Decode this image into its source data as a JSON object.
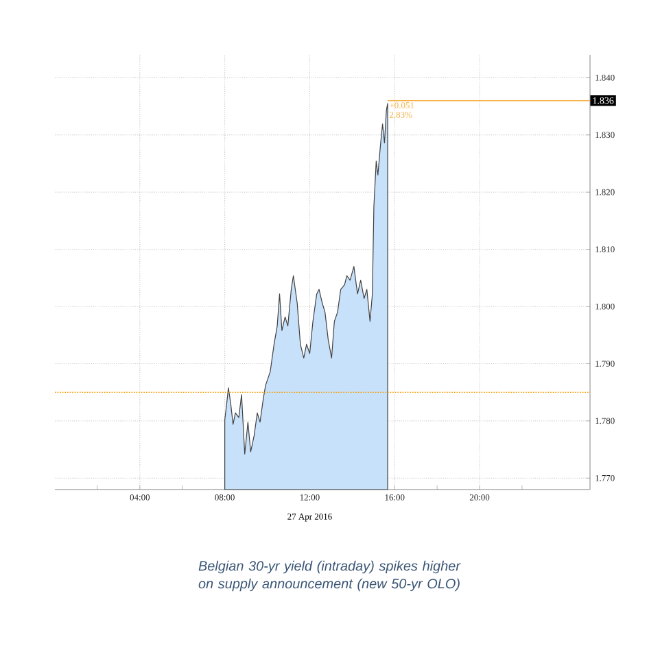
{
  "chart_data": {
    "type": "area",
    "xlabel": "27 Apr 2016",
    "x": [
      8.0,
      8.09,
      8.17,
      8.28,
      8.39,
      8.5,
      8.66,
      8.79,
      8.94,
      9.09,
      9.22,
      9.38,
      9.53,
      9.66,
      9.81,
      9.92,
      10.14,
      10.32,
      10.47,
      10.58,
      10.69,
      10.84,
      10.97,
      11.13,
      11.23,
      11.41,
      11.56,
      11.72,
      11.85,
      12.0,
      12.15,
      12.33,
      12.44,
      12.59,
      12.72,
      12.87,
      13.03,
      13.16,
      13.31,
      13.46,
      13.64,
      13.75,
      13.9,
      14.08,
      14.25,
      14.4,
      14.56,
      14.69,
      14.84,
      14.95,
      15.02,
      15.13,
      15.21,
      15.34,
      15.43,
      15.52,
      15.61,
      15.67
    ],
    "series": [
      {
        "color": "#c8e1fb",
        "values": [
          1.7802,
          1.783,
          1.7858,
          1.783,
          1.7794,
          1.7814,
          1.7806,
          1.7846,
          1.7742,
          1.7798,
          1.7746,
          1.7774,
          1.7814,
          1.7798,
          1.7838,
          1.7862,
          1.7886,
          1.7934,
          1.7966,
          1.8022,
          1.7958,
          1.7982,
          1.7966,
          1.803,
          1.8054,
          1.8006,
          1.7934,
          1.791,
          1.7934,
          1.7918,
          1.7974,
          1.8022,
          1.803,
          1.8006,
          1.799,
          1.7942,
          1.791,
          1.7974,
          1.799,
          1.803,
          1.8038,
          1.8054,
          1.8046,
          1.807,
          1.8022,
          1.8046,
          1.8014,
          1.803,
          1.7974,
          1.8022,
          1.8174,
          1.8254,
          1.823,
          1.8286,
          1.8319,
          1.8286,
          1.8343,
          1.8355
        ]
      }
    ],
    "xlim": [
      0,
      25.2
    ],
    "ylim": [
      1.768,
      1.844
    ],
    "xticks": [
      {
        "value": 2,
        "label": null
      },
      {
        "value": 4,
        "label": "04:00"
      },
      {
        "value": 6,
        "label": null
      },
      {
        "value": 8,
        "label": "08:00"
      },
      {
        "value": 10,
        "label": null
      },
      {
        "value": 12,
        "label": "12:00"
      },
      {
        "value": 14,
        "label": null
      },
      {
        "value": 16,
        "label": "16:00"
      },
      {
        "value": 18,
        "label": null
      },
      {
        "value": 20,
        "label": "20:00"
      },
      {
        "value": 22,
        "label": null
      }
    ],
    "yticks": [
      {
        "value": 1.77,
        "label": "1.770"
      },
      {
        "value": 1.78,
        "label": "1.780"
      },
      {
        "value": 1.79,
        "label": "1.790"
      },
      {
        "value": 1.8,
        "label": "1.800"
      },
      {
        "value": 1.81,
        "label": "1.810"
      },
      {
        "value": 1.82,
        "label": "1.820"
      },
      {
        "value": 1.83,
        "label": "1.830"
      },
      {
        "value": 1.84,
        "label": "1.840"
      }
    ],
    "ref_lines": [
      {
        "axis": "y",
        "value": 1.785,
        "color": "#f5a000",
        "line_style": "dotted"
      },
      {
        "axis": "y",
        "value": 1.836,
        "label": "1.836",
        "color": "#f5b040",
        "line_style": "solid"
      }
    ],
    "annotations": [
      "+0.051",
      "2.83%",
      "Belgian 30-yr yield (intraday) spikes higher on supply announcement (new 50-yr OLO)"
    ],
    "grid": true,
    "marker": "none"
  }
}
